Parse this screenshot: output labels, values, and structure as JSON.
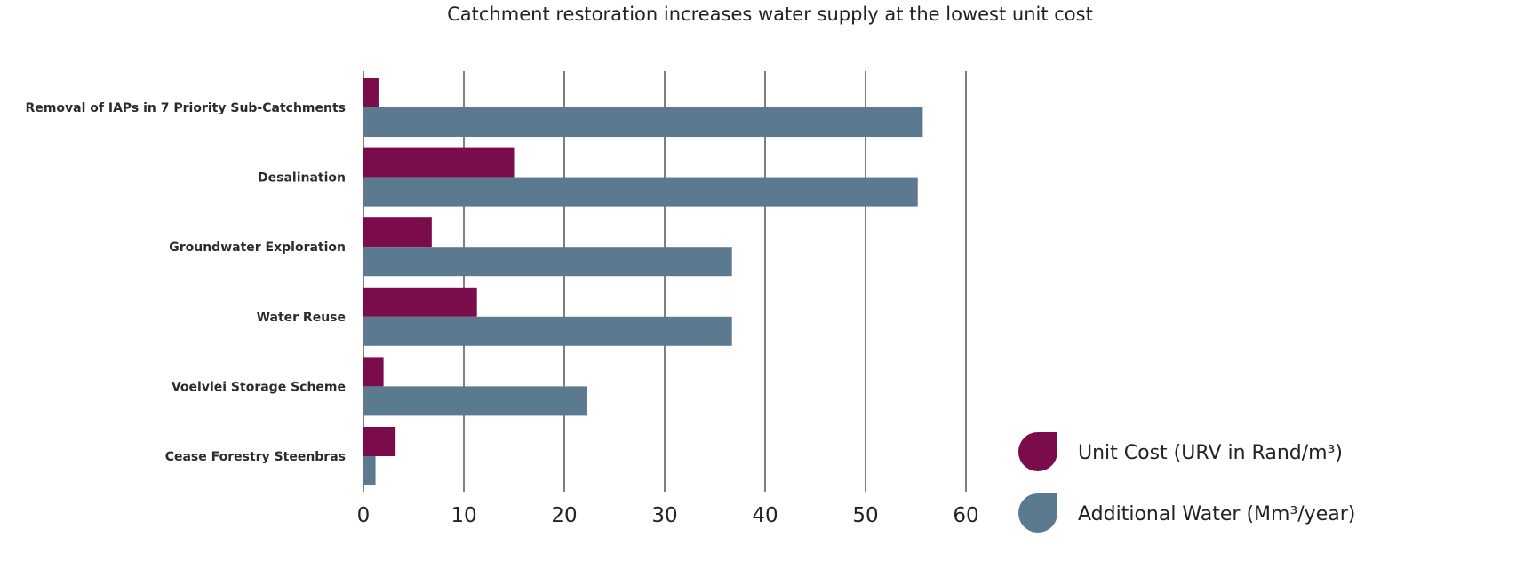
{
  "chart_data": {
    "type": "bar",
    "orientation": "horizontal",
    "title": "Catchment restoration increases water supply at the lowest unit cost",
    "xlabel": "",
    "ylabel": "",
    "categories": [
      "Removal of IAPs in 7 Priority Sub-Catchments",
      "Desalination",
      "Groundwater Exploration",
      "Water Reuse",
      "Voelvlei Storage Scheme",
      "Cease Forestry Steenbras"
    ],
    "series": [
      {
        "name": "Unit Cost (URV in Rand/m³)",
        "color": "#7b0c4c",
        "values": [
          1.5,
          15,
          6.8,
          11.3,
          2,
          3.2
        ]
      },
      {
        "name": "Additional Water (Mm³/year)",
        "color": "#5b7a90",
        "values": [
          55.7,
          55.2,
          36.7,
          36.7,
          22.3,
          1.2
        ]
      }
    ],
    "xlim": [
      0,
      60
    ],
    "xticks": [
      "0",
      "10",
      "20",
      "30",
      "40",
      "50",
      "60"
    ],
    "grid": "vertical",
    "legend": "bottom-right"
  }
}
